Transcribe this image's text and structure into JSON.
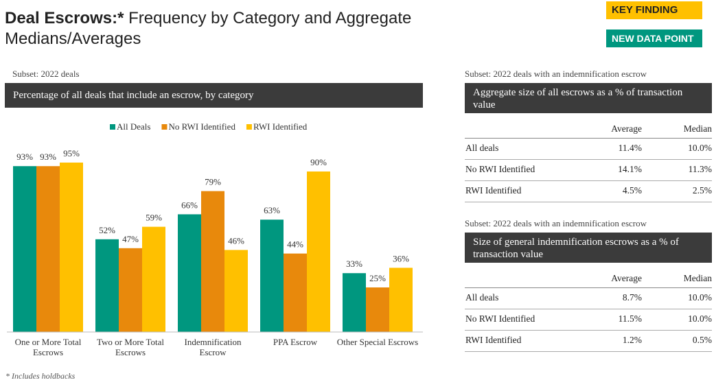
{
  "header": {
    "title_bold": "Deal Escrows:*",
    "title_rest": " Frequency by Category and Aggregate Medians/Averages",
    "badges": [
      "KEY FINDING",
      "NEW DATA POINT"
    ]
  },
  "chart_data": {
    "type": "bar",
    "subset": "Subset: 2022 deals",
    "title": "Percentage of all deals that include an escrow, by category",
    "categories": [
      "One or More Total Escrows",
      "Two or More Total Escrows",
      "Indemnification Escrow",
      "PPA Escrow",
      "Other Special Escrows"
    ],
    "series": [
      {
        "name": "All Deals",
        "color": "#00977f",
        "values": [
          93,
          52,
          66,
          63,
          33
        ],
        "value_labels": [
          "93%",
          "52%",
          "66%",
          "63%",
          "33%"
        ]
      },
      {
        "name": "No RWI Identified",
        "color": "#e8890c",
        "values": [
          93,
          47,
          79,
          44,
          25
        ],
        "value_labels": [
          "93%",
          "47%",
          "79%",
          "44%",
          "25%"
        ]
      },
      {
        "name": "RWI Identified",
        "color": "#ffc000",
        "values": [
          95,
          59,
          46,
          90,
          36
        ],
        "value_labels": [
          "95%",
          "59%",
          "46%",
          "90%",
          "36%"
        ]
      }
    ],
    "legend": "top"
  },
  "tables": [
    {
      "subset": "Subset: 2022 deals with an indemnification escrow",
      "title": "Aggregate size of all escrows as a % of transaction value",
      "columns": [
        "Average",
        "Median"
      ],
      "rows": [
        [
          "All deals",
          "11.4%",
          "10.0%"
        ],
        [
          "No RWI Identified",
          "14.1%",
          "11.3%"
        ],
        [
          "RWI Identified",
          "4.5%",
          "2.5%"
        ]
      ]
    },
    {
      "subset": "Subset: 2022 deals with an indemnification escrow",
      "title": "Size of general indemnification escrows as a % of transaction value",
      "columns": [
        "Average",
        "Median"
      ],
      "rows": [
        [
          "All deals",
          "8.7%",
          "10.0%"
        ],
        [
          "No RWI Identified",
          "11.5%",
          "10.0%"
        ],
        [
          "RWI Identified",
          "1.2%",
          "0.5%"
        ]
      ]
    }
  ],
  "footnote": "* Includes holdbacks"
}
